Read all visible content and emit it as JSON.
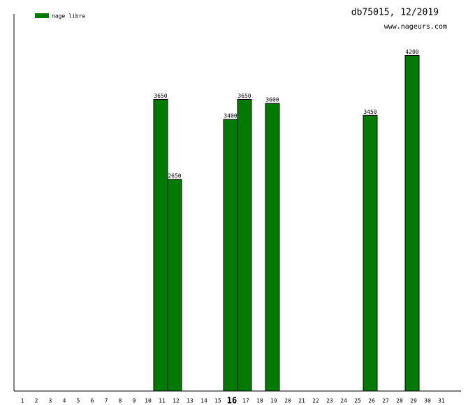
{
  "chart_data": {
    "type": "bar",
    "title": "db75015, 12/2019",
    "subtitle": "www.nageurs.com",
    "legend": "top-left",
    "series_name": "nage libre",
    "color": "#007a00",
    "categories": [
      "1",
      "2",
      "3",
      "4",
      "5",
      "6",
      "7",
      "8",
      "9",
      "10",
      "11",
      "12",
      "13",
      "14",
      "15",
      "16",
      "17",
      "18",
      "19",
      "20",
      "21",
      "22",
      "23",
      "24",
      "25",
      "26",
      "27",
      "28",
      "29",
      "30",
      "31"
    ],
    "highlight_category": "16",
    "values": [
      null,
      null,
      null,
      null,
      null,
      null,
      null,
      null,
      null,
      null,
      3650,
      2650,
      null,
      null,
      null,
      3400,
      3650,
      null,
      3600,
      null,
      null,
      null,
      null,
      null,
      null,
      3450,
      null,
      null,
      4200,
      null,
      null
    ],
    "ylim": [
      0,
      4720
    ]
  }
}
